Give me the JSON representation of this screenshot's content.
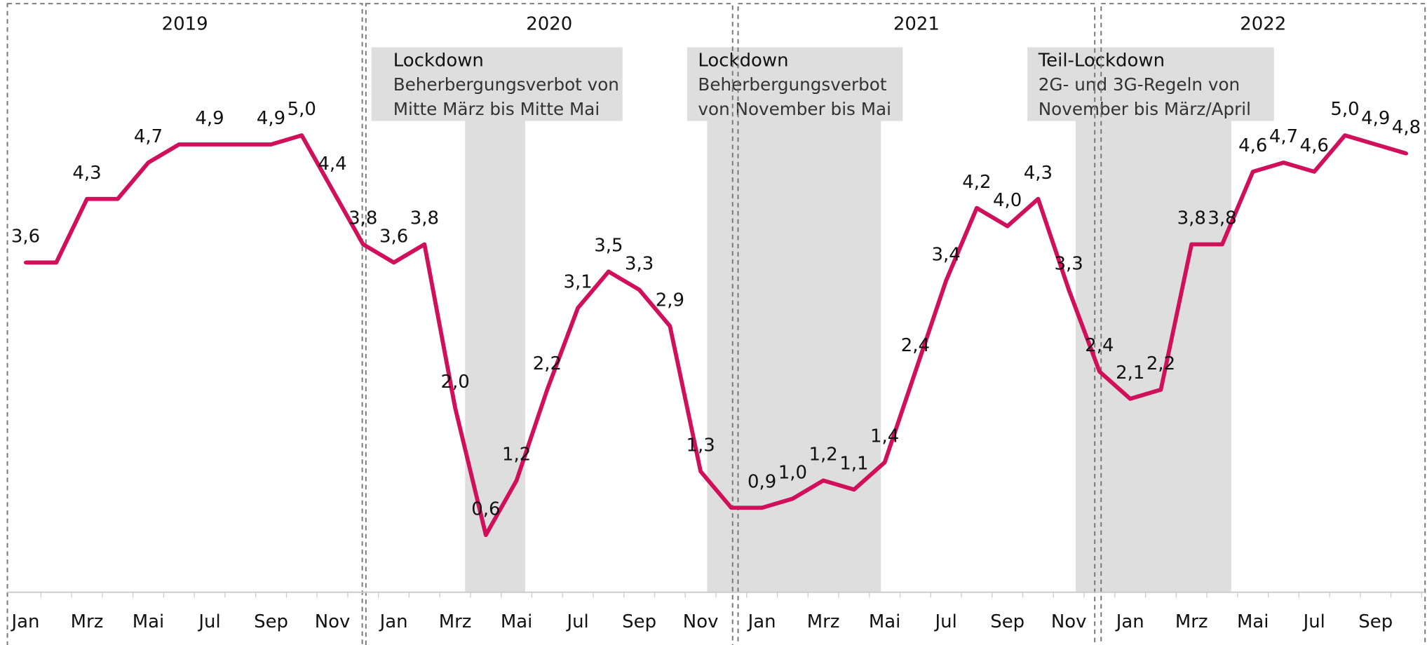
{
  "chart_data": {
    "type": "line",
    "years": [
      "2019",
      "2020",
      "2021",
      "2022"
    ],
    "categories": [
      "Jan",
      null,
      "Mrz",
      null,
      "Mai",
      null,
      "Jul",
      null,
      "Sep",
      null,
      "Nov",
      null,
      "Jan",
      null,
      "Mrz",
      null,
      "Mai",
      null,
      "Jul",
      null,
      "Sep",
      null,
      "Nov",
      null,
      "Jan",
      null,
      "Mrz",
      null,
      "Mai",
      null,
      "Jul",
      null,
      "Sep",
      null,
      "Nov",
      null,
      "Jan",
      null,
      "Mrz",
      null,
      "Mai",
      null,
      "Jul",
      null,
      "Sep",
      null
    ],
    "series": [
      {
        "color": "#d10f5a",
        "values": [
          3.6,
          3.6,
          4.3,
          4.3,
          4.7,
          4.9,
          4.9,
          4.9,
          4.9,
          5.0,
          4.4,
          3.8,
          3.6,
          3.8,
          2.0,
          0.6,
          1.2,
          2.2,
          3.1,
          3.5,
          3.3,
          2.9,
          1.3,
          0.9,
          0.9,
          1.0,
          1.2,
          1.1,
          1.4,
          2.4,
          3.4,
          4.2,
          4.0,
          4.3,
          3.3,
          2.4,
          2.1,
          2.2,
          3.8,
          3.8,
          4.6,
          4.7,
          4.6,
          5.0,
          4.9,
          4.8
        ],
        "value_labels": [
          "3,6",
          null,
          "4,3",
          null,
          "4,7",
          null,
          "4,9",
          null,
          "4,9",
          "5,0",
          "4,4",
          "3,8",
          "3,6",
          "3,8",
          "2,0",
          "0,6",
          "1,2",
          "2,2",
          "3,1",
          "3,5",
          "3,3",
          "2,9",
          "1,3",
          null,
          "0,9",
          "1,0",
          "1,2",
          "1,1",
          "1,4",
          "2,4",
          "3,4",
          "4,2",
          "4,0",
          "4,3",
          "3,3",
          "2,4",
          "2,1",
          "2,2",
          "3,8",
          "3,8",
          "4,6",
          "4,7",
          "4,6",
          "5,0",
          "4,9",
          "4,8"
        ]
      }
    ],
    "ylim": [
      0,
      6.5
    ],
    "annotations": [
      {
        "title": "Lockdown",
        "lines": [
          "Beherbergungsverbot von",
          "Mitte März bis Mitte Mai"
        ]
      },
      {
        "title": "Lockdown",
        "lines": [
          "Beherbergungsverbot",
          "von November bis Mai"
        ]
      },
      {
        "title": "Teil-Lockdown",
        "lines": [
          "2G- und 3G-Regeln von",
          "November bis März/April"
        ]
      }
    ]
  }
}
